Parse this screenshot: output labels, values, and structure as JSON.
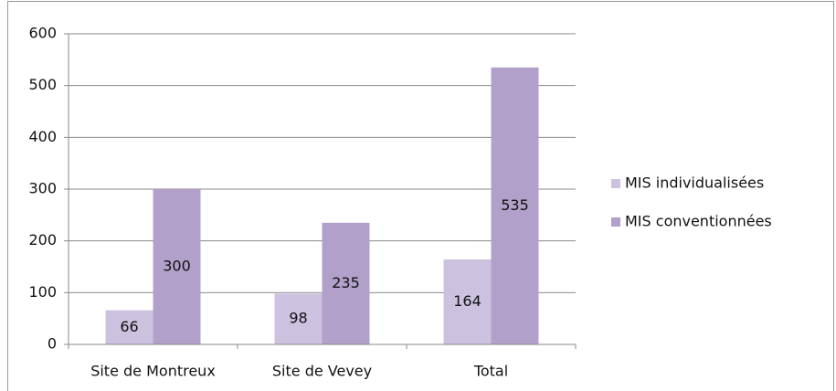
{
  "chart_data": {
    "type": "bar",
    "categories": [
      "Site de Montreux",
      "Site de Vevey",
      "Total"
    ],
    "series": [
      {
        "name": "MIS individualisées",
        "color": "#ccc1de",
        "values": [
          66,
          98,
          164
        ]
      },
      {
        "name": "MIS conventionnées",
        "color": "#b1a0c9",
        "values": [
          300,
          235,
          535
        ]
      }
    ],
    "ylim": [
      0,
      600
    ],
    "yticks": [
      0,
      100,
      200,
      300,
      400,
      500,
      600
    ],
    "grid": true,
    "legend": "right",
    "data_labels": true
  }
}
